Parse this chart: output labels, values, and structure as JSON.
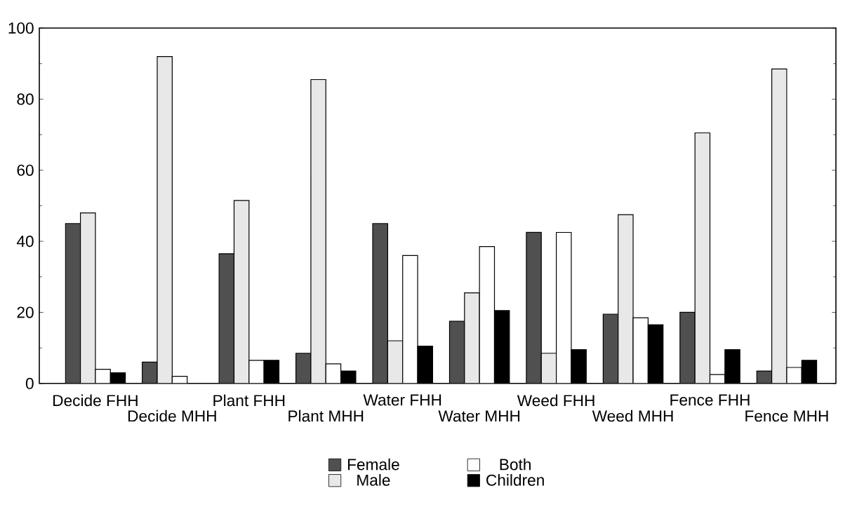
{
  "chart_data": {
    "type": "bar",
    "categories": [
      "Decide FHH",
      "Decide MHH",
      "Plant FHH",
      "Plant MHH",
      "Water FHH",
      "Water MHH",
      "Weed FHH",
      "Weed MHH",
      "Fence FHH",
      "Fence MHH"
    ],
    "series": [
      {
        "name": "Female",
        "color": "#505050",
        "values": [
          45,
          6,
          36.5,
          8.5,
          45,
          17.5,
          42.5,
          19.5,
          20,
          3.5
        ]
      },
      {
        "name": "Male",
        "color": "#e8e8e8",
        "values": [
          48,
          92,
          51.5,
          85.5,
          12,
          25.5,
          8.5,
          47.5,
          70.5,
          88.5
        ]
      },
      {
        "name": "Both",
        "color": "#ffffff",
        "values": [
          4,
          2,
          6.5,
          5.5,
          36,
          38.5,
          42.5,
          18.5,
          2.5,
          4.5
        ]
      },
      {
        "name": "Children",
        "color": "#000000",
        "values": [
          3,
          0,
          6.5,
          3.5,
          10.5,
          20.5,
          9.5,
          16.5,
          9.5,
          6.5
        ]
      }
    ],
    "ylim": [
      0,
      100
    ],
    "yticks": [
      0,
      20,
      40,
      60,
      80,
      100
    ],
    "grid": false,
    "legend": "bottom"
  }
}
